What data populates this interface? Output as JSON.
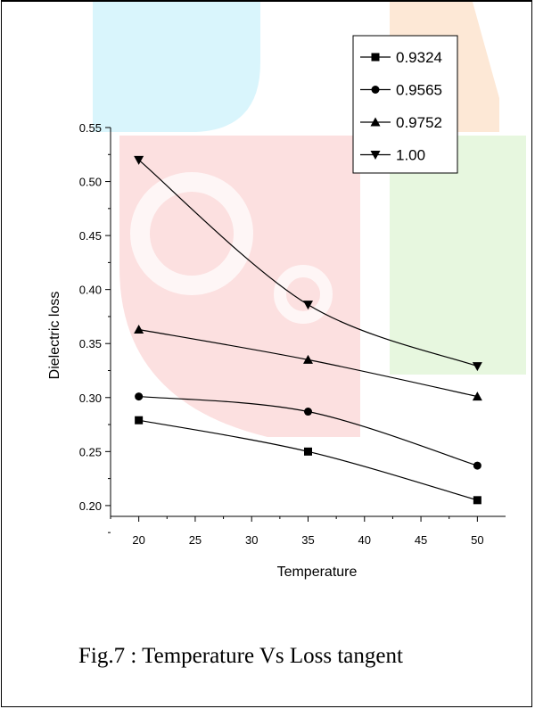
{
  "caption": "Fig.7 : Temperature Vs Loss tangent",
  "chart_data": {
    "type": "line",
    "title": "",
    "xlabel": "Temperature",
    "ylabel": "Dielectric loss",
    "xlim": [
      17.5,
      52.5
    ],
    "ylim": [
      0.19,
      0.55
    ],
    "x_ticks": [
      20,
      25,
      30,
      35,
      40,
      45,
      50
    ],
    "y_ticks": [
      0.2,
      0.25,
      0.3,
      0.35,
      0.4,
      0.45,
      0.5,
      0.55
    ],
    "x_tick_labels": [
      "20",
      "25",
      "30",
      "35",
      "40",
      "45",
      "50"
    ],
    "y_tick_labels": [
      "0.20",
      "0.25",
      "0.30",
      "0.35",
      "0.40",
      "0.45",
      "0.50",
      "0.55"
    ],
    "grid": false,
    "legend_position": "top-right",
    "x": [
      20,
      35,
      50
    ],
    "series": [
      {
        "name": "0.9324",
        "marker": "square",
        "values": [
          0.279,
          0.25,
          0.205
        ]
      },
      {
        "name": "0.9565",
        "marker": "circle",
        "values": [
          0.301,
          0.287,
          0.237
        ]
      },
      {
        "name": "0.9752",
        "marker": "triangle-up",
        "values": [
          0.363,
          0.335,
          0.301
        ]
      },
      {
        "name": "1.00",
        "marker": "triangle-down",
        "values": [
          0.52,
          0.386,
          0.329
        ]
      }
    ],
    "colors": {
      "line": "#000000",
      "watermark_cyan": "#d6f4fb",
      "watermark_orange": "#fde6d2",
      "watermark_red": "#fbdcdc",
      "watermark_green": "#e4f6dc"
    }
  }
}
